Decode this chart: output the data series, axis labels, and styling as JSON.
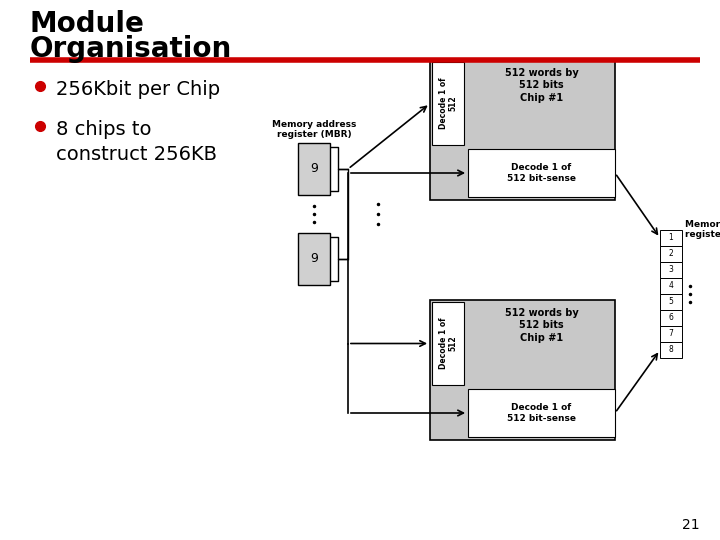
{
  "title_line1": "Module",
  "title_line2": "Organisation",
  "title_fontsize": 20,
  "title_color": "#000000",
  "red_line_color": "#cc0000",
  "bullet_color": "#cc0000",
  "bullet_text_color": "#000000",
  "bullets": [
    "256Kbit per Chip",
    "8 chips to\nconstruct 256KB"
  ],
  "bullet_fontsize": 14,
  "background_color": "#ffffff",
  "page_number": "21",
  "chip_gray": "#c8c8c8",
  "chip_white": "#ffffff",
  "mbr_label_top": "Memory address\nregister (MBR)",
  "mbr_label_bottom": "Memory buffer\nregister (MBR)",
  "chip_top_text": "512 words by\n512 bits\nChip #1",
  "chip_bot_text": "512 words by\n512 bits\nChip #1",
  "sense_top_text": "Decode 1 of\n512 bit-sense",
  "sense_bot_text": "Decode 1 of\n512 bit-sense",
  "decode_text": "Decode 1 of\n512",
  "addr_top_label": "9",
  "addr_bot_label": "9"
}
